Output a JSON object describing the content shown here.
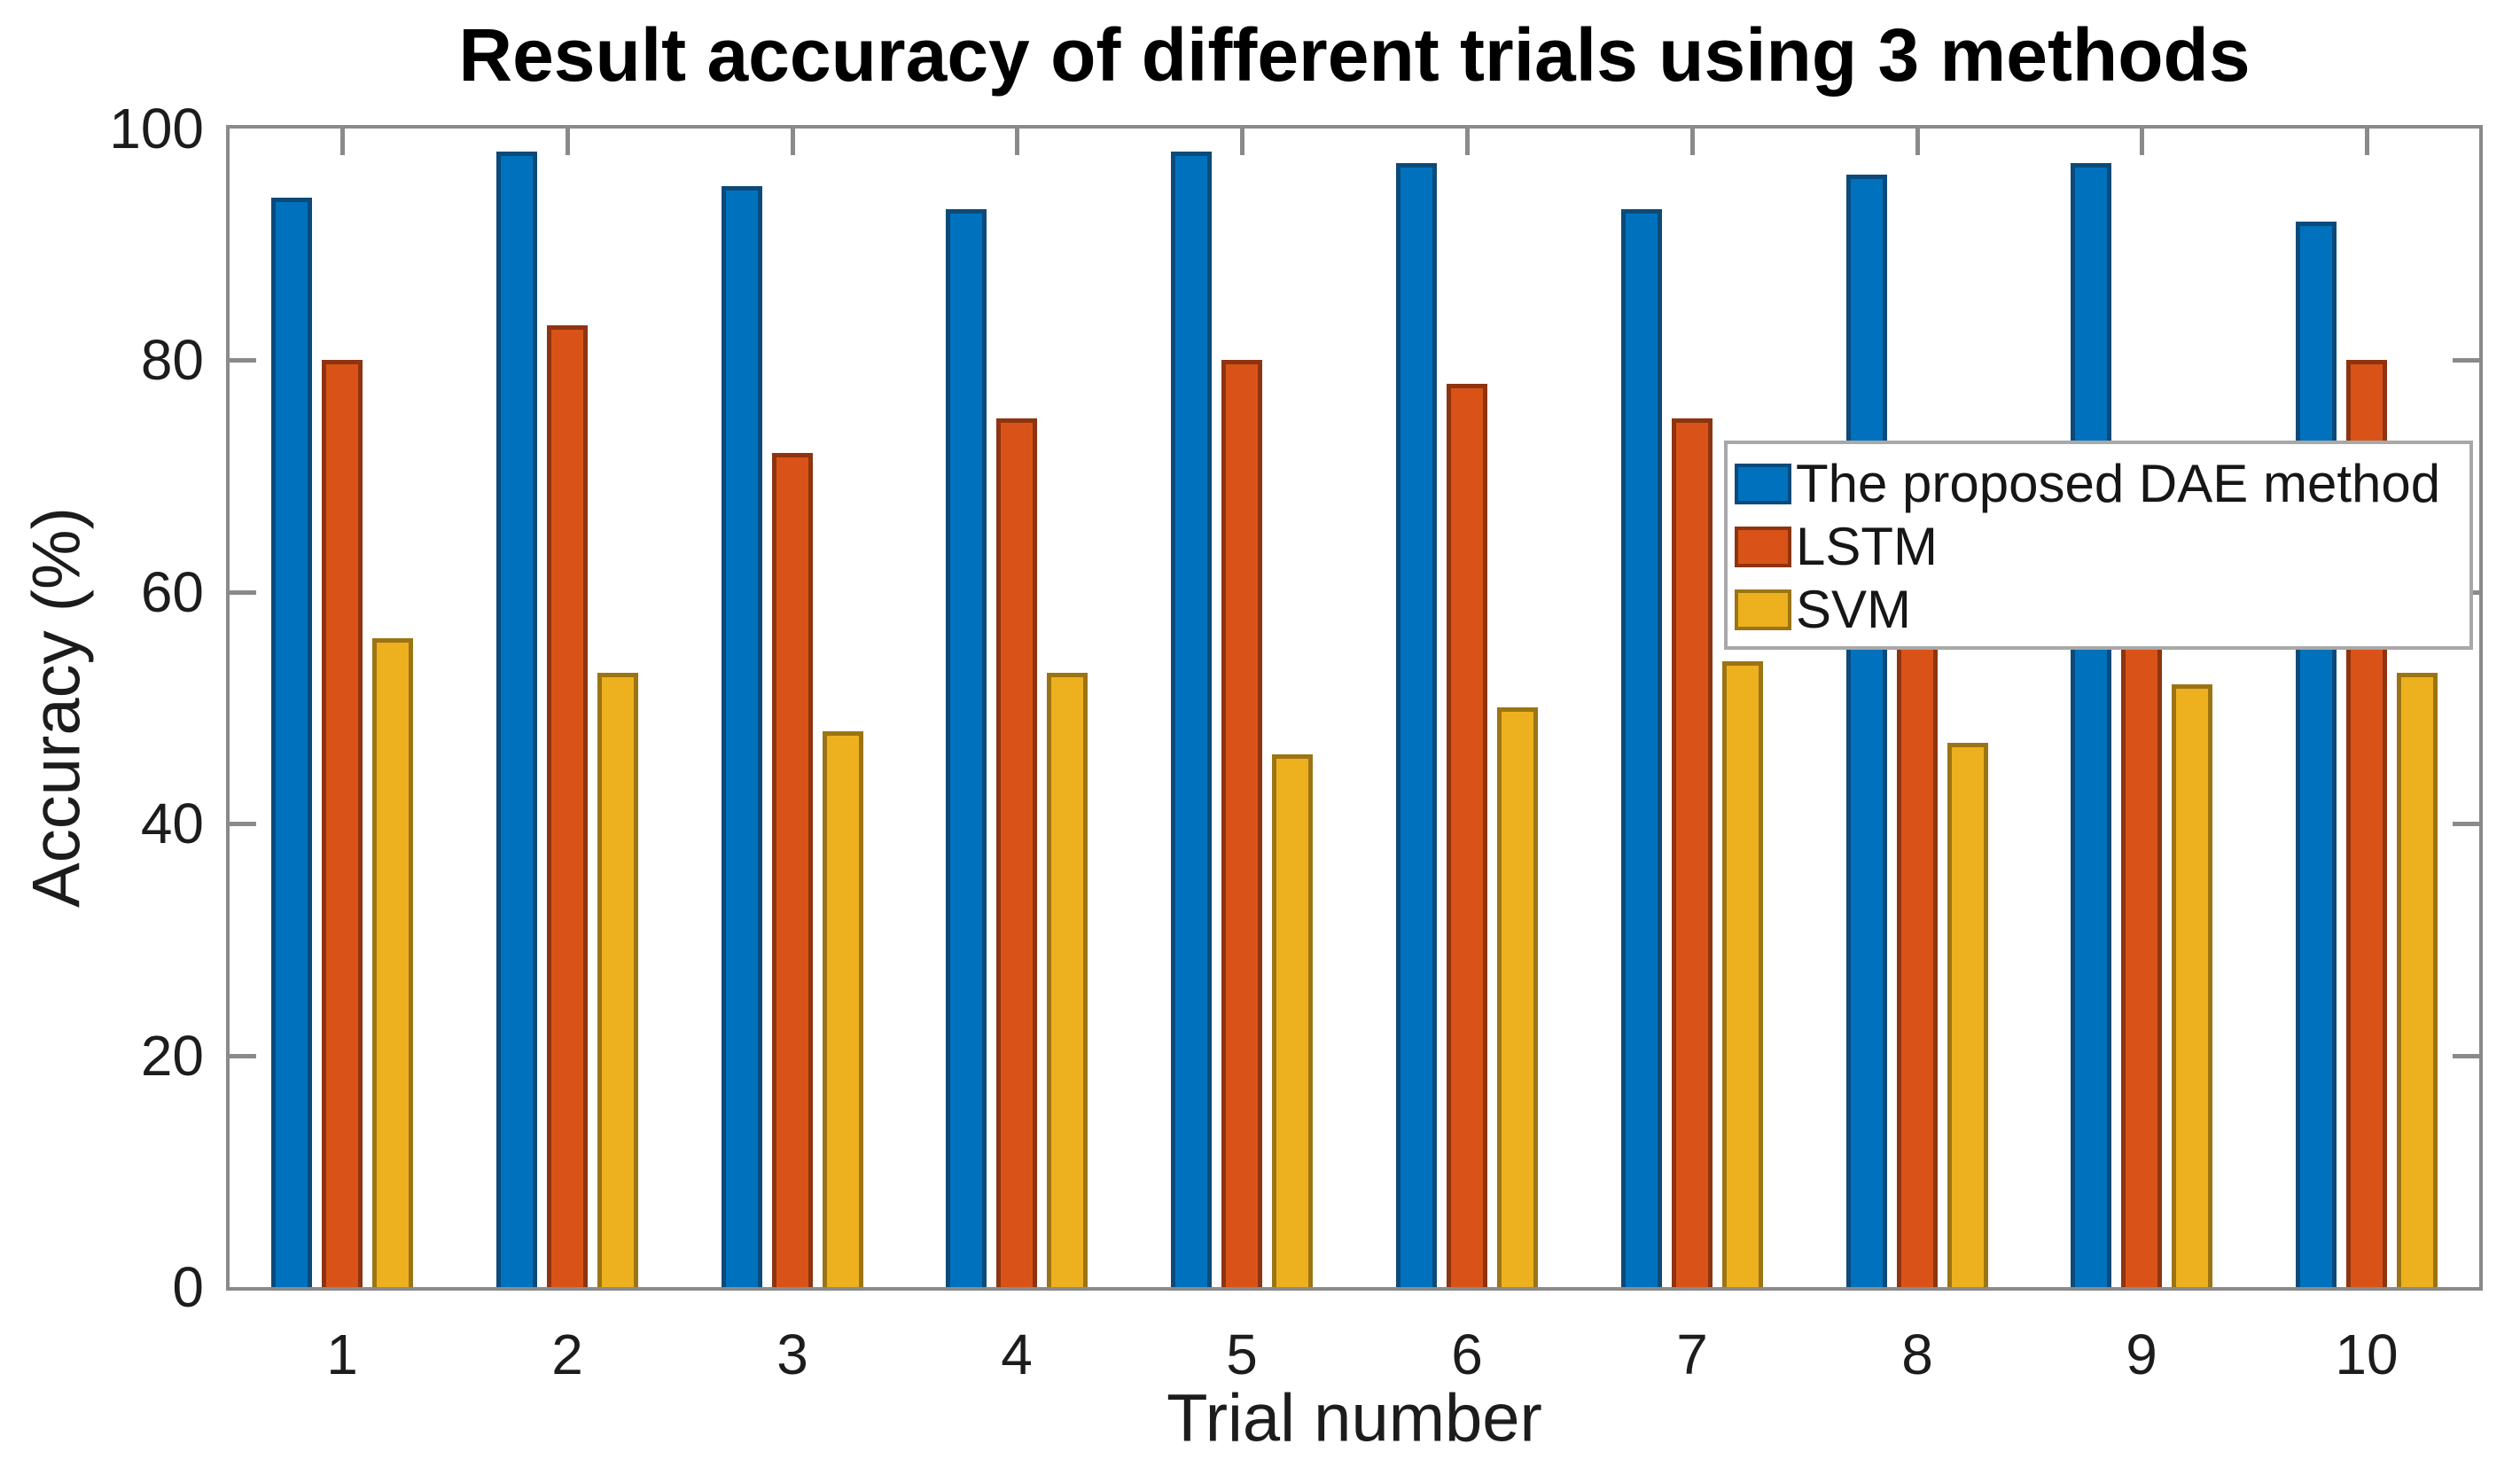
{
  "chart_data": {
    "type": "bar",
    "title": "Result accuracy of different trials using 3 methods",
    "xlabel": "Trial number",
    "ylabel": "Accuracy (%)",
    "categories": [
      "1",
      "2",
      "3",
      "4",
      "5",
      "6",
      "7",
      "8",
      "9",
      "10"
    ],
    "series": [
      {
        "name": "The proposed DAE method",
        "fill": "#0072BD",
        "edge": "#0B4A7A",
        "values": [
          94,
          98,
          95,
          93,
          98,
          97,
          93,
          96,
          97,
          92
        ]
      },
      {
        "name": "LSTM",
        "fill": "#D95319",
        "edge": "#8E3410",
        "values": [
          80,
          83,
          72,
          75,
          80,
          78,
          75,
          70,
          70,
          80
        ]
      },
      {
        "name": "SVM",
        "fill": "#EDB120",
        "edge": "#9C7414",
        "values": [
          56,
          53,
          48,
          53,
          46,
          50,
          54,
          47,
          52,
          53
        ]
      }
    ],
    "ylim": [
      0,
      100
    ],
    "xlim": [
      0.5,
      10.5
    ],
    "yticks": [
      0,
      20,
      40,
      60,
      80,
      100
    ],
    "grid": false,
    "legend": {
      "position": "inside-right-middle",
      "entries": [
        "The proposed DAE method",
        "LSTM",
        "SVM"
      ]
    },
    "occlusion_note": "Tops of LSTM bars for trials 8 and 9 are hidden behind the legend box; their listed values (70) are estimates bounded by the legend edges (between ~56 and ~73).",
    "frame_color": "#8a8a8a",
    "text_color": "#1c1c1c"
  }
}
